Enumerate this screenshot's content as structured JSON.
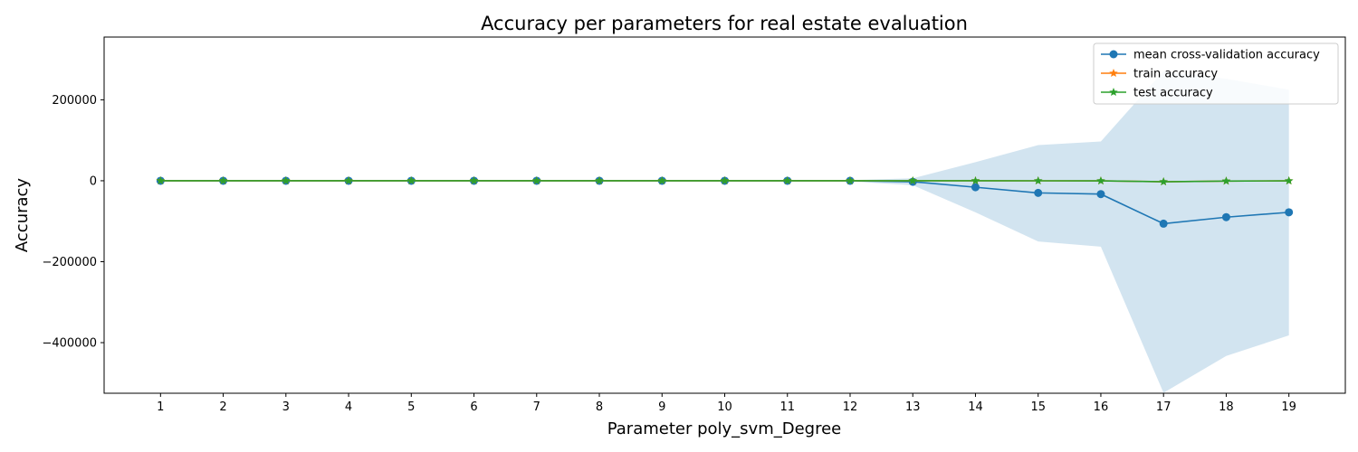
{
  "chart_data": {
    "type": "line",
    "title": "Accuracy per parameters for real estate evaluation",
    "xlabel": "Parameter poly_svm_Degree",
    "ylabel": "Accuracy",
    "x": [
      1,
      2,
      3,
      4,
      5,
      6,
      7,
      8,
      9,
      10,
      11,
      12,
      13,
      14,
      15,
      16,
      17,
      18,
      19
    ],
    "xlim": [
      0.1,
      19.9
    ],
    "ylim": [
      -525000,
      355000
    ],
    "yticks": [
      -400000,
      -200000,
      0,
      200000
    ],
    "ytick_labels": [
      "−400000",
      "−200000",
      "0",
      "200000"
    ],
    "grid": false,
    "legend_position": "top-right",
    "series": [
      {
        "name": "mean cross-validation accuracy",
        "marker": "circle",
        "color": "#1f77b4",
        "values": [
          0.5,
          0.6,
          0.6,
          0.6,
          0.6,
          0.6,
          0.6,
          0.6,
          0.5,
          0.3,
          -5,
          -100,
          -2500,
          -16000,
          -30000,
          -33000,
          -106000,
          -90000,
          -78000
        ],
        "band_upper": [
          1,
          1,
          1,
          1,
          1,
          1,
          1,
          1,
          1,
          1,
          100,
          1500,
          6000,
          46000,
          88000,
          97000,
          271000,
          252000,
          225000
        ],
        "band_lower": [
          0,
          0,
          0,
          0,
          0,
          0,
          0,
          0,
          0,
          0,
          -100,
          -1700,
          -11000,
          -78000,
          -150000,
          -163000,
          -524000,
          -433000,
          -382000
        ]
      },
      {
        "name": "train accuracy",
        "marker": "star",
        "color": "#ff7f0e",
        "values": [
          0.6,
          0.6,
          0.6,
          0.6,
          0.6,
          0.6,
          0.6,
          0.6,
          0.6,
          0.6,
          0.5,
          0.3,
          0.1,
          -50,
          -150,
          -300,
          -2500,
          -800,
          -200
        ]
      },
      {
        "name": "test accuracy",
        "marker": "star",
        "color": "#2ca02c",
        "values": [
          0.6,
          0.6,
          0.6,
          0.6,
          0.6,
          0.6,
          0.6,
          0.6,
          0.6,
          0.6,
          0.5,
          0.3,
          0.1,
          -50,
          -150,
          -300,
          -2500,
          -800,
          -200
        ]
      }
    ]
  }
}
